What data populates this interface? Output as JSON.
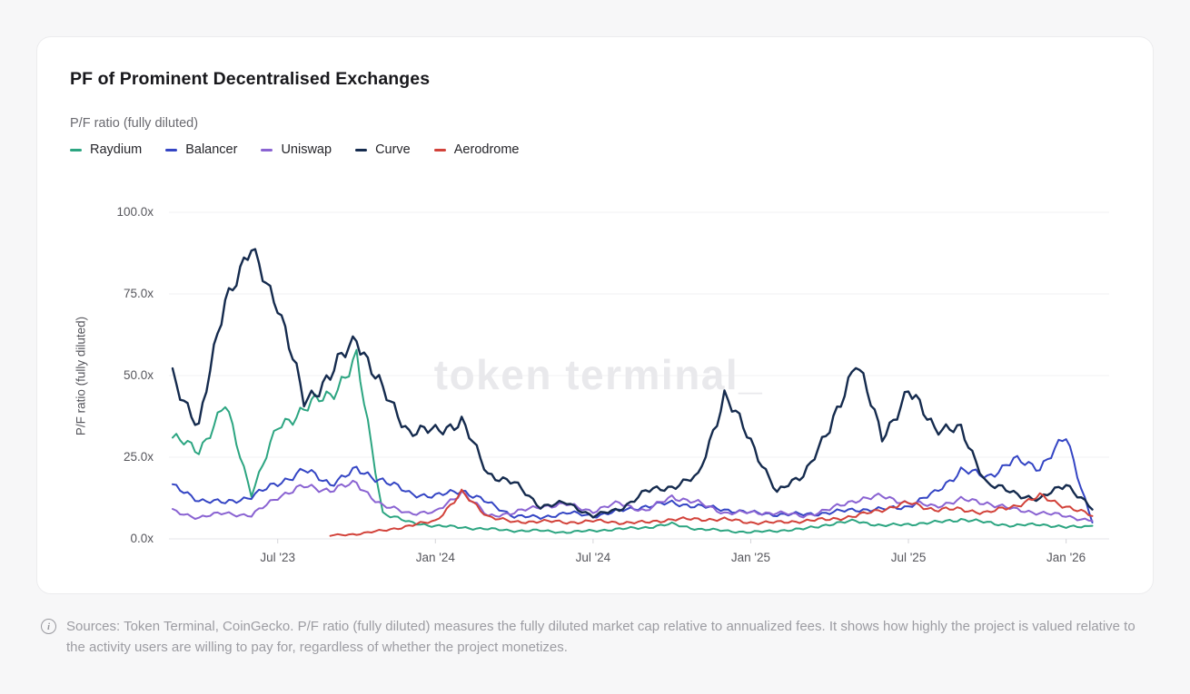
{
  "card": {
    "title": "PF of Prominent Decentralised Exchanges",
    "subtitle": "P/F ratio (fully diluted)"
  },
  "watermark": "token terminal_",
  "footer": {
    "icon": "info-icon",
    "text": "Sources: Token Terminal, CoinGecko. P/F ratio (fully diluted) measures the fully diluted market cap relative to annualized fees. It shows how highly the project is valued relative to the activity users are willing to pay for, regardless of whether the project monetizes."
  },
  "chart_data": {
    "type": "line",
    "title": "PF of Prominent Decentralised Exchanges",
    "ylabel": "P/F ratio (fully diluted)",
    "ylim": [
      0,
      100
    ],
    "y_ticks": [
      {
        "label": "0.0x",
        "value": 0
      },
      {
        "label": "25.0x",
        "value": 25
      },
      {
        "label": "50.0x",
        "value": 50
      },
      {
        "label": "75.0x",
        "value": 75
      },
      {
        "label": "100.0x",
        "value": 100
      }
    ],
    "x_ticks": [
      {
        "label": "Jul '23",
        "month_index": 4
      },
      {
        "label": "Jan '24",
        "month_index": 10
      },
      {
        "label": "Jul '24",
        "month_index": 16
      },
      {
        "label": "Jan '25",
        "month_index": 22
      },
      {
        "label": "Jul '25",
        "month_index": 28
      },
      {
        "label": "Jan '26",
        "month_index": 34
      }
    ],
    "months": [
      "Mar '23",
      "Apr '23",
      "May '23",
      "Jun '23",
      "Jul '23",
      "Aug '23",
      "Sep '23",
      "Oct '23",
      "Nov '23",
      "Dec '23",
      "Jan '24",
      "Feb '24",
      "Mar '24",
      "Apr '24",
      "May '24",
      "Jun '24",
      "Jul '24",
      "Aug '24",
      "Sep '24",
      "Oct '24",
      "Nov '24",
      "Dec '24",
      "Jan '25",
      "Feb '25",
      "Mar '25",
      "Apr '25",
      "May '25",
      "Jun '25",
      "Jul '25",
      "Aug '25",
      "Sep '25",
      "Oct '25",
      "Nov '25",
      "Dec '25",
      "Jan '26",
      "Feb '26"
    ],
    "grid": "horizontal",
    "legend_position": "top-left",
    "series": [
      {
        "name": "Raydium",
        "color": "#2ca581",
        "values": [
          31,
          27,
          41,
          14,
          34,
          40,
          44,
          55,
          8,
          5,
          4,
          3.5,
          3,
          2.5,
          2.5,
          2,
          2.5,
          3,
          3.5,
          4.5,
          3,
          2.5,
          2,
          2.5,
          3,
          4.5,
          5.5,
          4,
          4.5,
          5,
          6,
          5,
          4,
          4.5,
          3.5,
          4
        ]
      },
      {
        "name": "Balancer",
        "color": "#3445c4",
        "values": [
          16,
          12,
          11,
          13,
          17,
          21,
          17,
          21,
          18,
          14,
          13,
          15,
          11,
          7,
          6.5,
          8,
          7,
          8.5,
          10,
          11,
          10,
          9,
          8,
          7.5,
          7.5,
          8,
          9,
          9,
          10,
          14,
          21,
          19,
          24,
          22,
          31,
          5
        ]
      },
      {
        "name": "Uniswap",
        "color": "#8a63d2",
        "values": [
          8.5,
          6.5,
          8,
          7,
          13,
          16,
          15,
          17,
          10,
          8,
          8,
          14.5,
          7,
          8,
          10,
          10.5,
          8.5,
          11,
          8.5,
          13,
          11,
          8,
          8,
          8,
          7,
          9,
          12,
          13,
          11,
          10,
          12,
          11,
          9,
          8,
          7,
          5.5
        ]
      },
      {
        "name": "Curve",
        "color": "#152b4e",
        "values": [
          50,
          34,
          74,
          88,
          72,
          42,
          50,
          62,
          45,
          33,
          33,
          36,
          20,
          17,
          10,
          11,
          7,
          9,
          14.5,
          16,
          19,
          44,
          30,
          14,
          20,
          33,
          55,
          31,
          45,
          34.5,
          33,
          17,
          14,
          12,
          17,
          9
        ]
      },
      {
        "name": "Aerodrome",
        "color": "#d2423a",
        "values": [
          null,
          null,
          null,
          null,
          null,
          null,
          1,
          1.5,
          2.5,
          4,
          5.5,
          14,
          7,
          5,
          5.5,
          5,
          5.5,
          5,
          5,
          6,
          6,
          6,
          5,
          5,
          5.5,
          6,
          7,
          9,
          11,
          9,
          9,
          8,
          10,
          13,
          10,
          7
        ]
      }
    ]
  }
}
